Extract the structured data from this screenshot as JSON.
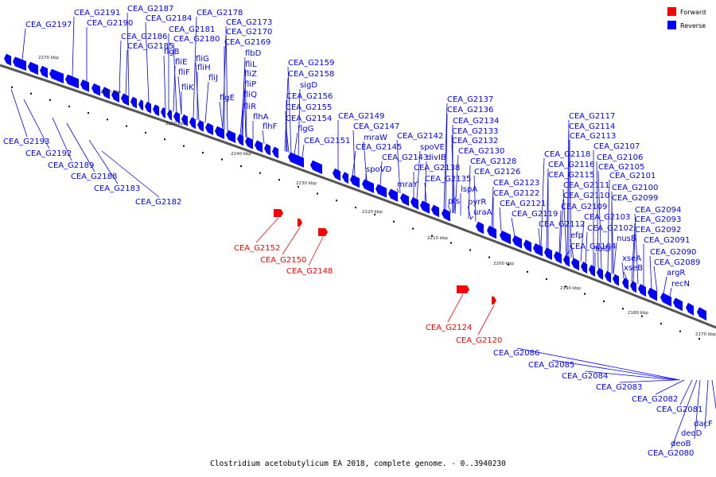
{
  "colors": {
    "forward": "#ff0000",
    "reverse": "#0000ff",
    "backbone": "#777777"
  },
  "legend": {
    "forward": "Forward",
    "reverse": "Reverse"
  },
  "caption": "Clostridium acetobutylicum EA 2018, complete genome. - 0..3940230",
  "ticks": [
    "2270 kbp",
    "2260 kbp",
    "2250 kbp",
    "2240 kbp",
    "2230 kbp",
    "2220 kbp",
    "2210 kbp",
    "2200 kbp",
    "2190 kbp",
    "2180 kbp",
    "2170 kbp"
  ],
  "labels_forward": [
    "CEA_G2152",
    "CEA_G2150",
    "CEA_G2148",
    "CEA_G2124",
    "CEA_G2120"
  ],
  "labels_reverse_above": [
    "CEA_G2197",
    "CEA_G2191",
    "CEA_G2190",
    "CEA_G2187",
    "CEA_G2184",
    "CEA_G2178",
    "CEA_G2186",
    "CEA_G2181",
    "CEA_G2173",
    "CEA_G2180",
    "CEA_G2170",
    "CEA_G2185",
    "CEA_G2169",
    "flgB",
    "fliG",
    "flbD",
    "fliE",
    "fliH",
    "fliL",
    "fliF",
    "fliJ",
    "fliZ",
    "fliK",
    "fliP",
    "flgE",
    "fliQ",
    "fliR",
    "flhA",
    "flhF",
    "CEA_G2159",
    "CEA_G2158",
    "sigD",
    "CEA_G2156",
    "CEA_G2155",
    "CEA_G2154",
    "flgG",
    "CEA_G2151",
    "CEA_G2149",
    "CEA_G2147",
    "mraW",
    "CEA_G2145",
    "CEA_G2143",
    "spoVD",
    "mraY",
    "CEA_G2142",
    "spoVE",
    "divIB",
    "CEA_G2138",
    "CEA_G2135",
    "pfs",
    "CEA_G2137",
    "CEA_G2136",
    "CEA_G2134",
    "CEA_G2133",
    "CEA_G2132",
    "CEA_G2130",
    "CEA_G2128",
    "lspA",
    "CEA_G2126",
    "pyrR",
    "uraA",
    "CEA_G2123",
    "CEA_G2122",
    "CEA_G2121",
    "CEA_G2119",
    "CEA_G2118",
    "CEA_G2116",
    "CEA_G2115",
    "CEA_G2112",
    "efp",
    "CEA_G2104",
    "CEA_G2117",
    "CEA_G2114",
    "CEA_G2113",
    "CEA_G2111",
    "CEA_G2110",
    "CEA_G2109",
    "CEA_G2107",
    "CEA_G2106",
    "CEA_G2105",
    "CEA_G2103",
    "CEA_G2102",
    "folD",
    "xseA",
    "xseB",
    "nusB",
    "CEA_G2101",
    "CEA_G2100",
    "CEA_G2099",
    "CEA_G2094",
    "CEA_G2093",
    "CEA_G2092",
    "CEA_G2091",
    "CEA_G2090",
    "CEA_G2089",
    "argR",
    "recN"
  ],
  "labels_reverse_below": [
    "CEA_G2193",
    "CEA_G2192",
    "CEA_G2189",
    "CEA_G2188",
    "CEA_G2183",
    "CEA_G2182",
    "CEA_G2086",
    "CEA_G2085",
    "CEA_G2084",
    "CEA_G2083",
    "CEA_G2082",
    "CEA_G2081",
    "dacF",
    "deoD",
    "deoB",
    "CEA_G2080"
  ]
}
